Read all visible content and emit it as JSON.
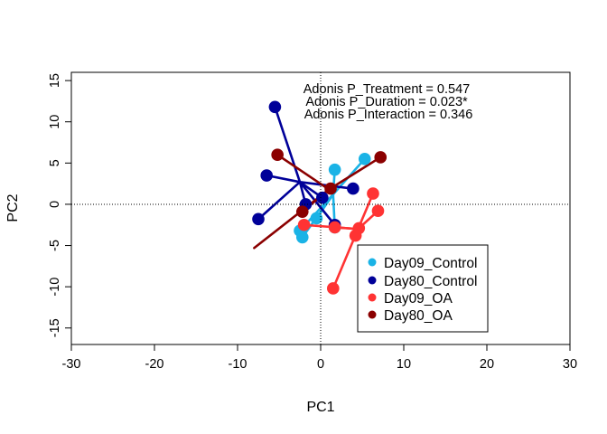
{
  "chart_data": {
    "type": "scatter",
    "title": "",
    "xlabel": "PC1",
    "ylabel": "PC2",
    "xlim": [
      -30,
      30
    ],
    "ylim": [
      -17,
      16
    ],
    "xticks": [
      -30,
      -20,
      -10,
      0,
      10,
      20,
      30
    ],
    "yticks": [
      -15,
      -10,
      -5,
      0,
      5,
      10,
      15
    ],
    "reference_lines": {
      "x": 0,
      "y": 0,
      "style": "dotted"
    },
    "annotations": [
      "Adonis P_Treatment = 0.547",
      "Adonis P_Duration = 0.023*",
      "Adonis P_Interaction = 0.346"
    ],
    "legend_position": "bottom-right",
    "series": [
      {
        "name": "Day09_Control",
        "color": "#1AB3E6",
        "centroid": [
          1.5,
          1.2
        ],
        "points": [
          [
            5.3,
            5.5
          ],
          [
            1.7,
            4.2
          ],
          [
            -0.5,
            -1.7
          ],
          [
            1.7,
            -2.8
          ],
          [
            -2.5,
            -3.2
          ],
          [
            -2.2,
            -4.0
          ]
        ]
      },
      {
        "name": "Day80_Control",
        "color": "#000099",
        "centroid": [
          -2.5,
          2.7
        ],
        "points": [
          [
            -5.5,
            11.8
          ],
          [
            -6.5,
            3.5
          ],
          [
            -7.5,
            -1.8
          ],
          [
            -1.8,
            0.0
          ],
          [
            0.2,
            0.8
          ],
          [
            3.9,
            1.9
          ],
          [
            1.7,
            -2.5
          ]
        ]
      },
      {
        "name": "Day09_OA",
        "color": "#FF3333",
        "centroid": [
          4.5,
          -3.0
        ],
        "points": [
          [
            1.5,
            -10.2
          ],
          [
            6.3,
            1.3
          ],
          [
            6.9,
            -0.8
          ],
          [
            4.6,
            -2.9
          ],
          [
            4.2,
            -3.8
          ],
          [
            -2.0,
            -2.5
          ],
          [
            1.7,
            -2.8
          ]
        ]
      },
      {
        "name": "Day80_OA",
        "color": "#8B0000",
        "centroid": [
          1.0,
          1.8
        ],
        "points": [
          [
            -5.2,
            6.0
          ],
          [
            7.2,
            5.7
          ],
          [
            1.2,
            1.9
          ],
          [
            -2.2,
            -0.9
          ],
          [
            -8.0,
            -5.3
          ]
        ]
      }
    ]
  }
}
